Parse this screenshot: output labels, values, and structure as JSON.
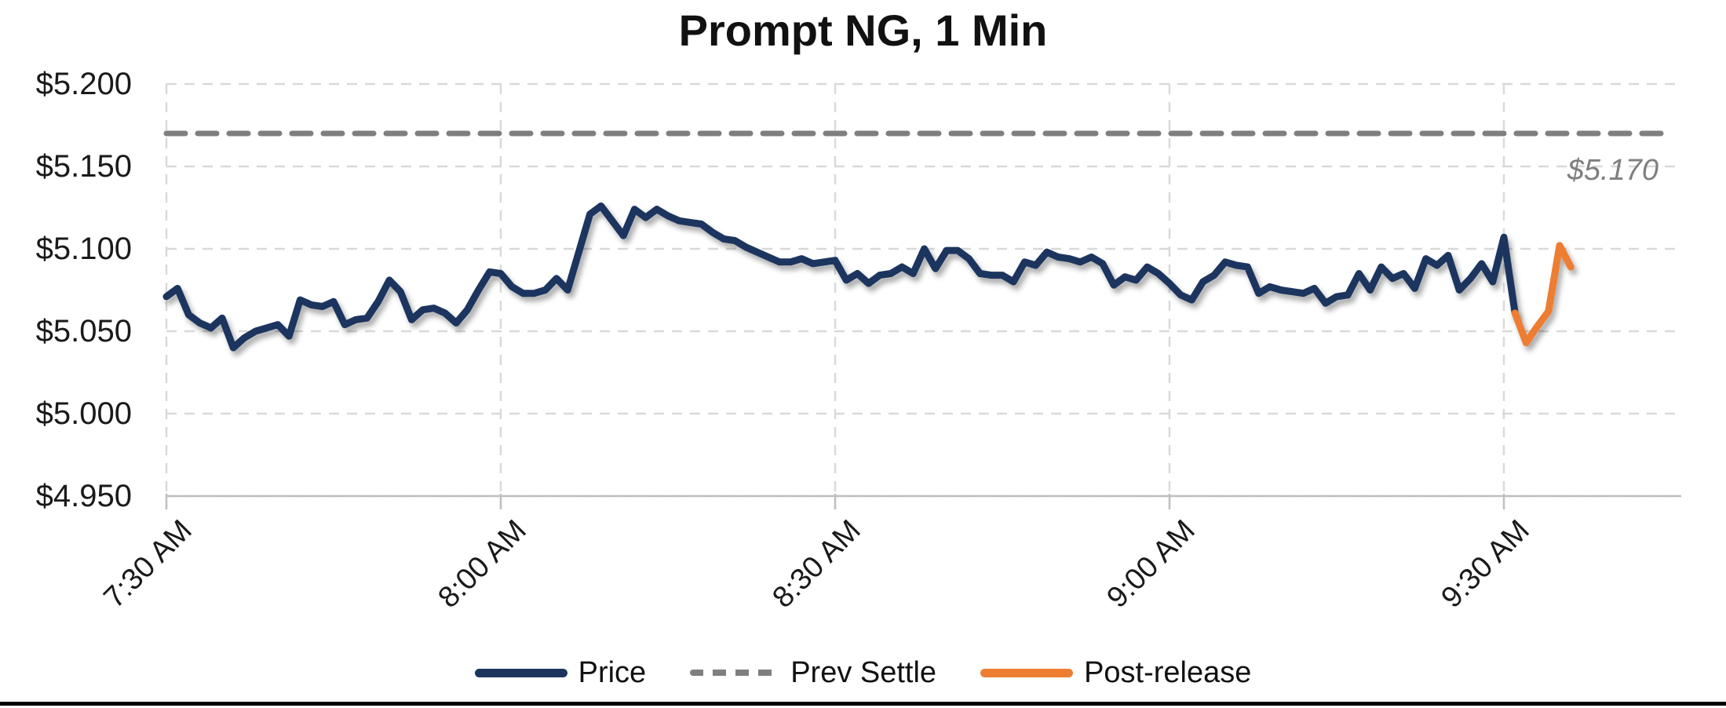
{
  "page": {
    "background": "#ffffff"
  },
  "chart_data": {
    "type": "line",
    "title": "Prompt NG, 1 Min",
    "grid": "dashed",
    "legend_position": "bottom",
    "x_axis": {
      "tick_labels": [
        "7:30 AM",
        "8:00 AM",
        "8:30 AM",
        "9:00 AM",
        "9:30 AM"
      ],
      "tick_minutes": [
        0,
        30,
        60,
        90,
        120
      ],
      "unit": "time of day, 1-minute bars"
    },
    "y_axis": {
      "tick_labels": [
        "$5.200",
        "$5.150",
        "$5.100",
        "$5.050",
        "$5.000",
        "$4.950"
      ],
      "tick_values": [
        5.2,
        5.15,
        5.1,
        5.05,
        5.0,
        4.95
      ],
      "min": 4.95,
      "max": 5.2
    },
    "series": [
      {
        "name": "Price",
        "type": "line",
        "color": "#1b355f",
        "start_time": "7:30 AM",
        "interval_minutes": 1,
        "start_minute": 0,
        "values": [
          5.071,
          5.076,
          5.06,
          5.055,
          5.052,
          5.058,
          5.04,
          5.046,
          5.05,
          5.052,
          5.054,
          5.047,
          5.069,
          5.066,
          5.065,
          5.068,
          5.054,
          5.057,
          5.058,
          5.068,
          5.081,
          5.074,
          5.057,
          5.063,
          5.064,
          5.061,
          5.055,
          5.063,
          5.075,
          5.086,
          5.085,
          5.077,
          5.073,
          5.073,
          5.075,
          5.082,
          5.075,
          5.098,
          5.121,
          5.126,
          5.117,
          5.108,
          5.124,
          5.119,
          5.124,
          5.12,
          5.117,
          5.116,
          5.115,
          5.11,
          5.106,
          5.105,
          5.101,
          5.098,
          5.095,
          5.092,
          5.092,
          5.094,
          5.091,
          5.092,
          5.093,
          5.081,
          5.085,
          5.079,
          5.084,
          5.085,
          5.089,
          5.085,
          5.1,
          5.088,
          5.099,
          5.099,
          5.094,
          5.085,
          5.084,
          5.084,
          5.08,
          5.092,
          5.09,
          5.098,
          5.095,
          5.094,
          5.092,
          5.095,
          5.091,
          5.078,
          5.083,
          5.081,
          5.089,
          5.085,
          5.079,
          5.072,
          5.069,
          5.08,
          5.084,
          5.092,
          5.09,
          5.089,
          5.073,
          5.077,
          5.075,
          5.074,
          5.073,
          5.076,
          5.067,
          5.071,
          5.072,
          5.085,
          5.075,
          5.089,
          5.082,
          5.085,
          5.076,
          5.094,
          5.09,
          5.096,
          5.075,
          5.082,
          5.091,
          5.08,
          5.107,
          5.061
        ]
      },
      {
        "name": "Prev Settle",
        "type": "hline",
        "color": "#7f7f7f",
        "dashed": true,
        "value": 5.17
      },
      {
        "name": "Post-release",
        "type": "line",
        "color": "#ed7d31",
        "start_time": "9:31 AM",
        "interval_minutes": 1,
        "start_minute": 121,
        "values": [
          5.061,
          5.043,
          5.053,
          5.062,
          5.102,
          5.089
        ]
      }
    ],
    "annotation": {
      "text": "$5.170",
      "color": "#7f7f7f",
      "italic": true
    }
  }
}
